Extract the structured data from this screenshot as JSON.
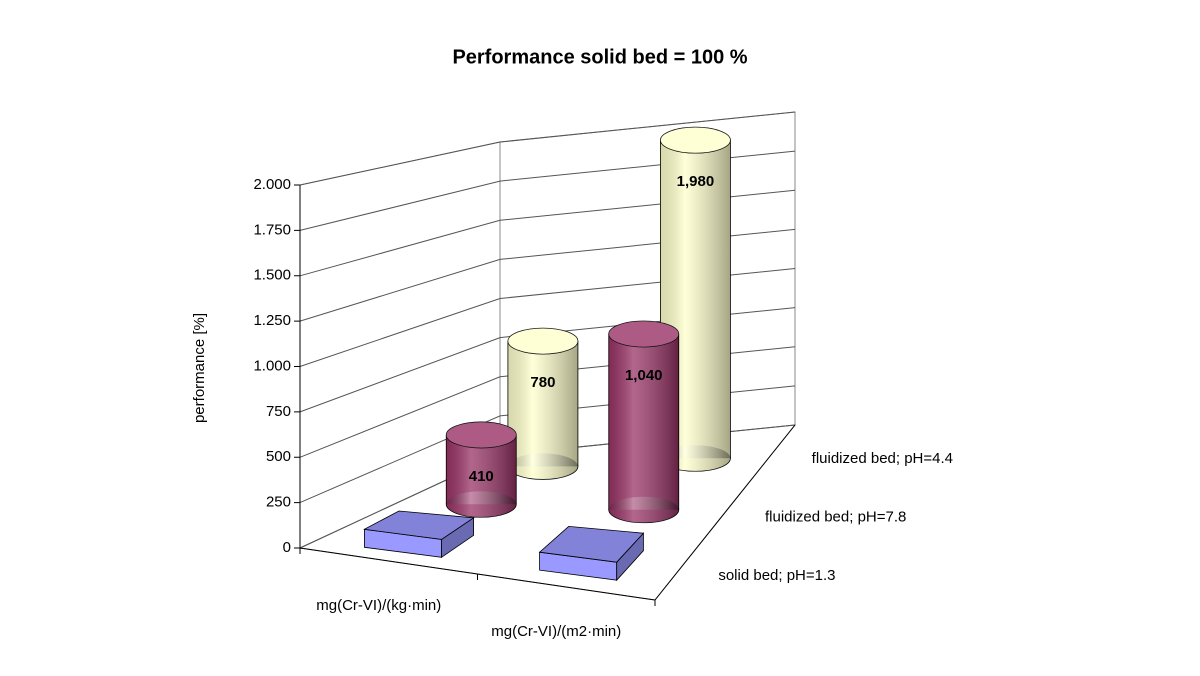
{
  "chart_data": {
    "type": "bar3d",
    "title": "Performance solid bed = 100 %",
    "ylabel": "performance [%]",
    "categories": [
      "mg(Cr-VI)/(kg·min)",
      "mg(Cr-VI)/(m2·min)"
    ],
    "series": [
      {
        "name": "solid bed; pH=1.3",
        "color": "#9999ff",
        "shape": "box",
        "values": [
          100,
          100
        ]
      },
      {
        "name": "fluidized bed; pH=7.8",
        "color": "#993366",
        "shape": "cylinder",
        "values": [
          410,
          1040
        ],
        "value_labels": [
          "410",
          "1,040"
        ]
      },
      {
        "name": "fluidized bed; pH=4.4",
        "color": "#ffffcc",
        "shape": "cylinder",
        "values": [
          780,
          1980
        ],
        "value_labels": [
          "780",
          "1,980"
        ]
      }
    ],
    "ylim": [
      0,
      2000
    ],
    "yticks": [
      0,
      250,
      500,
      750,
      {
        "value": 1000,
        "label": "1.000"
      },
      {
        "value": 1250,
        "label": "1.250"
      },
      {
        "value": 1500,
        "label": "1.500"
      },
      {
        "value": 1750,
        "label": "1.750"
      },
      {
        "value": 2000,
        "label": "2.000"
      }
    ],
    "grid": true
  }
}
